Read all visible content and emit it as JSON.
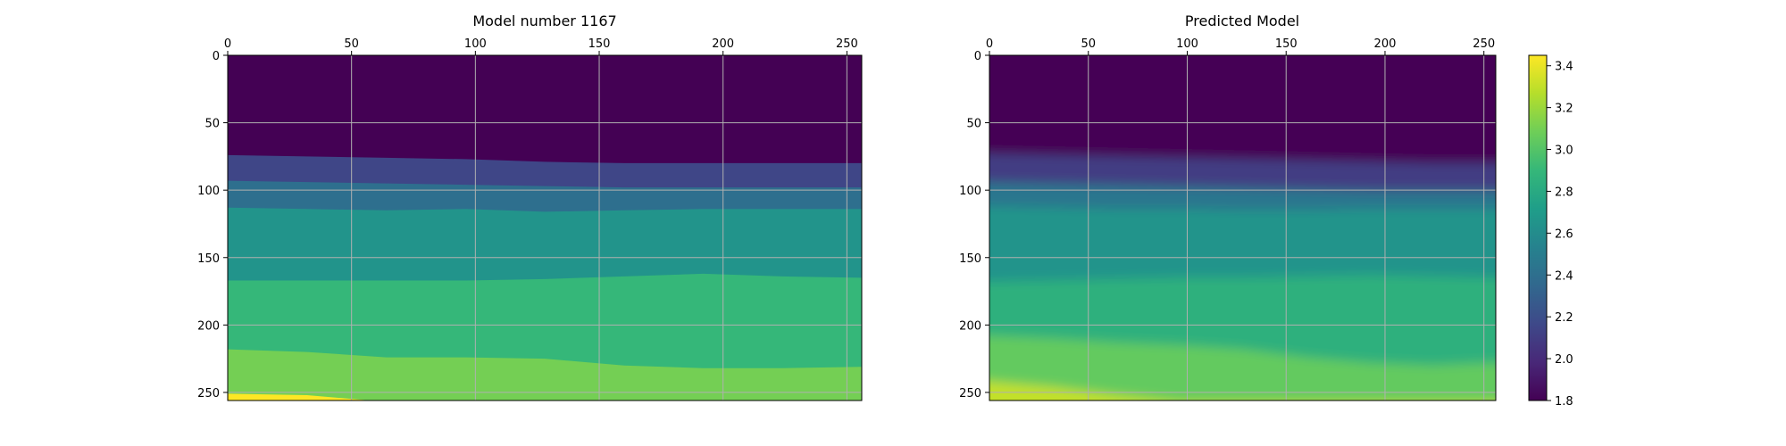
{
  "chart_data": [
    {
      "type": "heatmap",
      "title": "Model number 1167",
      "xlabel": "",
      "ylabel": "",
      "xlim": [
        0,
        256
      ],
      "ylim": [
        256,
        0
      ],
      "x_ticks": [
        0,
        50,
        100,
        150,
        200,
        250
      ],
      "y_ticks": [
        0,
        50,
        100,
        150,
        200,
        250
      ],
      "x_axis_position": "top",
      "grid": true,
      "columns": [
        0,
        32,
        64,
        96,
        128,
        160,
        192,
        224,
        256
      ],
      "layers": [
        {
          "value": 1.8,
          "top": [
            0,
            0,
            0,
            0,
            0,
            0,
            0,
            0,
            0
          ]
        },
        {
          "value": 2.15,
          "top": [
            74,
            75,
            76,
            77,
            79,
            80,
            80,
            80,
            80
          ]
        },
        {
          "value": 2.4,
          "top": [
            93,
            94,
            95,
            96,
            97,
            98,
            98,
            98,
            98
          ]
        },
        {
          "value": 2.65,
          "top": [
            113,
            114,
            115,
            114,
            116,
            115,
            114,
            114,
            114
          ]
        },
        {
          "value": 2.9,
          "top": [
            167,
            167,
            167,
            167,
            166,
            164,
            162,
            164,
            165
          ]
        },
        {
          "value": 3.1,
          "top": [
            218,
            220,
            224,
            224,
            225,
            230,
            232,
            232,
            231
          ]
        },
        {
          "value": 3.45,
          "top": [
            251,
            252,
            257,
            257,
            257,
            257,
            257,
            257,
            257
          ]
        }
      ]
    },
    {
      "type": "heatmap",
      "title": "Predicted Model",
      "xlabel": "",
      "ylabel": "",
      "xlim": [
        0,
        256
      ],
      "ylim": [
        256,
        0
      ],
      "x_ticks": [
        0,
        50,
        100,
        150,
        200,
        250
      ],
      "y_ticks": [
        0,
        50,
        100,
        150,
        200,
        250
      ],
      "x_axis_position": "top",
      "grid": true,
      "smooth": true,
      "columns": [
        0,
        32,
        64,
        96,
        128,
        160,
        192,
        224,
        256
      ],
      "layers": [
        {
          "value": 1.8,
          "top": [
            0,
            0,
            0,
            0,
            0,
            0,
            0,
            0,
            0
          ]
        },
        {
          "value": 2.1,
          "top": [
            73,
            74,
            75,
            76,
            77,
            78,
            79,
            80,
            80
          ]
        },
        {
          "value": 2.45,
          "top": [
            94,
            95,
            96,
            97,
            98,
            99,
            100,
            100,
            100
          ]
        },
        {
          "value": 2.65,
          "top": [
            112,
            113,
            114,
            114,
            115,
            115,
            114,
            114,
            114
          ]
        },
        {
          "value": 2.85,
          "top": [
            168,
            167,
            166,
            165,
            165,
            164,
            163,
            164,
            165
          ]
        },
        {
          "value": 3.05,
          "top": [
            208,
            210,
            213,
            215,
            218,
            224,
            228,
            230,
            228
          ]
        },
        {
          "value": 3.3,
          "top": [
            242,
            246,
            252,
            257,
            257,
            257,
            257,
            257,
            257
          ]
        }
      ]
    }
  ],
  "colorbar": {
    "min": 1.8,
    "max": 3.45,
    "ticks": [
      1.8,
      2.0,
      2.2,
      2.4,
      2.6,
      2.8,
      3.0,
      3.2,
      3.4
    ],
    "tick_labels": [
      "1.8",
      "2.0",
      "2.2",
      "2.4",
      "2.6",
      "2.8",
      "3.0",
      "3.2",
      "3.4"
    ],
    "colormap": "viridis"
  },
  "colors": {
    "viridis": [
      "#440154",
      "#482878",
      "#3e4989",
      "#31688e",
      "#26828e",
      "#1f9e89",
      "#35b779",
      "#6ece58",
      "#b5de2b",
      "#fde725"
    ],
    "grid": "#b0b0b0",
    "axis": "#000000"
  }
}
